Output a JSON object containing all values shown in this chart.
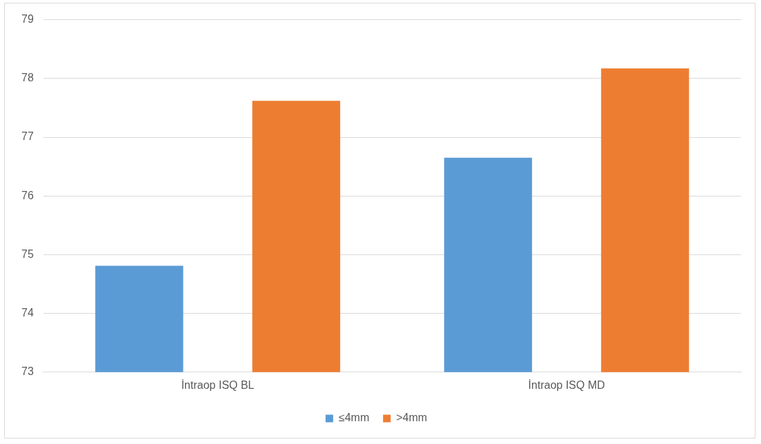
{
  "chart_data": {
    "type": "bar",
    "categories": [
      "İntraop ISQ BL",
      "İntraop ISQ MD"
    ],
    "series": [
      {
        "name": "≤4mm",
        "color": "#5b9bd5",
        "values": [
          74.81,
          76.65
        ]
      },
      {
        "name": ">4mm",
        "color": "#ed7d31",
        "values": [
          77.62,
          78.17
        ]
      }
    ],
    "ylim": [
      73,
      79
    ],
    "yticks": [
      73,
      74,
      75,
      76,
      77,
      78,
      79
    ],
    "grid": "y",
    "legend": "bottom"
  }
}
